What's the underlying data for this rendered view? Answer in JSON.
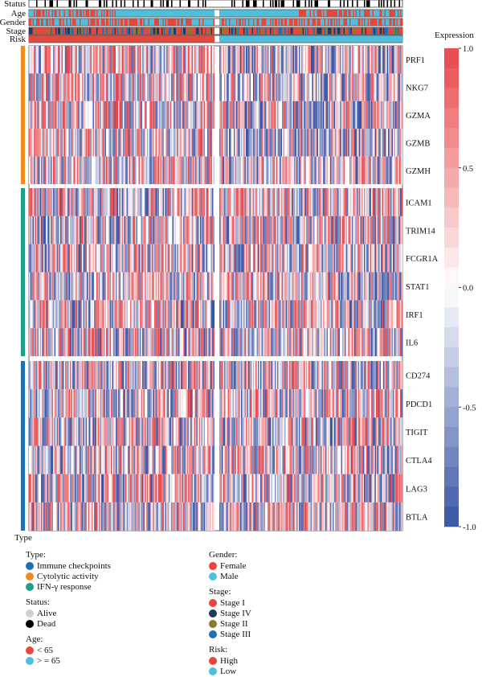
{
  "chart_data": {
    "type": "heatmap",
    "row_groups": [
      {
        "type": "Cytolytic activity",
        "genes": [
          "PRF1",
          "NKG7",
          "GZMA",
          "GZMB",
          "GZMH"
        ]
      },
      {
        "type": "IFN-γ response",
        "genes": [
          "ICAM1",
          "TRIM14",
          "FCGR1A",
          "STAT1",
          "IRF1",
          "IL6"
        ]
      },
      {
        "type": "Immune checkpoints",
        "genes": [
          "CD274",
          "PDCD1",
          "TIGIT",
          "CTLA4",
          "LAG3",
          "BTLA"
        ]
      }
    ],
    "column_groups": [
      {
        "risk": "High",
        "fraction_of_samples": 0.5
      },
      {
        "risk": "Low",
        "fraction_of_samples": 0.5
      }
    ],
    "annotation_tracks": [
      "Status",
      "Age",
      "Gender",
      "Stage",
      "Risk"
    ],
    "type_axis_label": "Type",
    "colorbar": {
      "title": "Expression",
      "range": [
        -1.0,
        1.0
      ],
      "ticks": [
        "1.0",
        "0.5",
        "0.0",
        "-0.5",
        "-1.0"
      ],
      "high_color": "#e8464a",
      "mid_color": "#ffffff",
      "low_color": "#3853a4"
    }
  },
  "legend": {
    "left": [
      {
        "title": "Type:",
        "items": [
          {
            "label": "Immune checkpoints",
            "color": "#1f6fb5"
          },
          {
            "label": "Cytolytic activity",
            "color": "#f08c1e"
          },
          {
            "label": "IFN-γ response",
            "color": "#1f9e88"
          }
        ]
      },
      {
        "title": "Status:",
        "items": [
          {
            "label": "Alive",
            "color": "#cfcfcf"
          },
          {
            "label": "Dead",
            "color": "#000000"
          }
        ]
      },
      {
        "title": "Age:",
        "items": [
          {
            "label": "< 65",
            "color": "#e8463a"
          },
          {
            "label": "> = 65",
            "color": "#4dc0e0"
          }
        ]
      }
    ],
    "right": [
      {
        "title": "Gender:",
        "items": [
          {
            "label": "Female",
            "color": "#e8463a"
          },
          {
            "label": "Male",
            "color": "#4dc0e0"
          }
        ]
      },
      {
        "title": "Stage:",
        "items": [
          {
            "label": "Stage I",
            "color": "#e8463a"
          },
          {
            "label": "Stage IV",
            "color": "#1f3a5f"
          },
          {
            "label": "Stage II",
            "color": "#8a7a2e"
          },
          {
            "label": "Stage III",
            "color": "#1f6fb5"
          }
        ]
      },
      {
        "title": "Risk:",
        "items": [
          {
            "label": "High",
            "color": "#e8463a"
          },
          {
            "label": "Low",
            "color": "#4dc0e0"
          }
        ]
      }
    ]
  }
}
